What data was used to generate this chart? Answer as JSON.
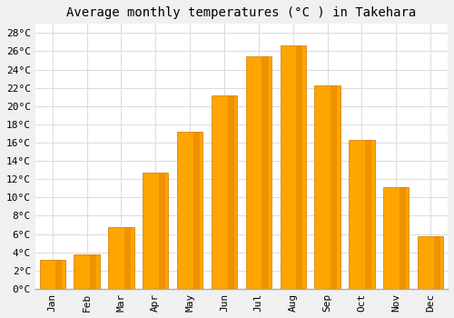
{
  "months": [
    "Jan",
    "Feb",
    "Mar",
    "Apr",
    "May",
    "Jun",
    "Jul",
    "Aug",
    "Sep",
    "Oct",
    "Nov",
    "Dec"
  ],
  "temperatures": [
    3.2,
    3.8,
    6.8,
    12.7,
    17.2,
    21.2,
    25.4,
    26.6,
    22.3,
    16.3,
    11.1,
    5.8
  ],
  "bar_color": "#FFA500",
  "bar_edge_color": "#CC7700",
  "title": "Average monthly temperatures (°C ) in Takehara",
  "ylim": [
    0,
    29
  ],
  "yticks": [
    0,
    2,
    4,
    6,
    8,
    10,
    12,
    14,
    16,
    18,
    20,
    22,
    24,
    26,
    28
  ],
  "ytick_labels": [
    "0°C",
    "2°C",
    "4°C",
    "6°C",
    "8°C",
    "10°C",
    "12°C",
    "14°C",
    "16°C",
    "18°C",
    "20°C",
    "22°C",
    "24°C",
    "26°C",
    "28°C"
  ],
  "background_color": "#f0f0f0",
  "plot_bg_color": "#ffffff",
  "grid_color": "#dddddd",
  "title_fontsize": 10,
  "tick_fontsize": 8,
  "font_family": "monospace",
  "bar_width": 0.75
}
